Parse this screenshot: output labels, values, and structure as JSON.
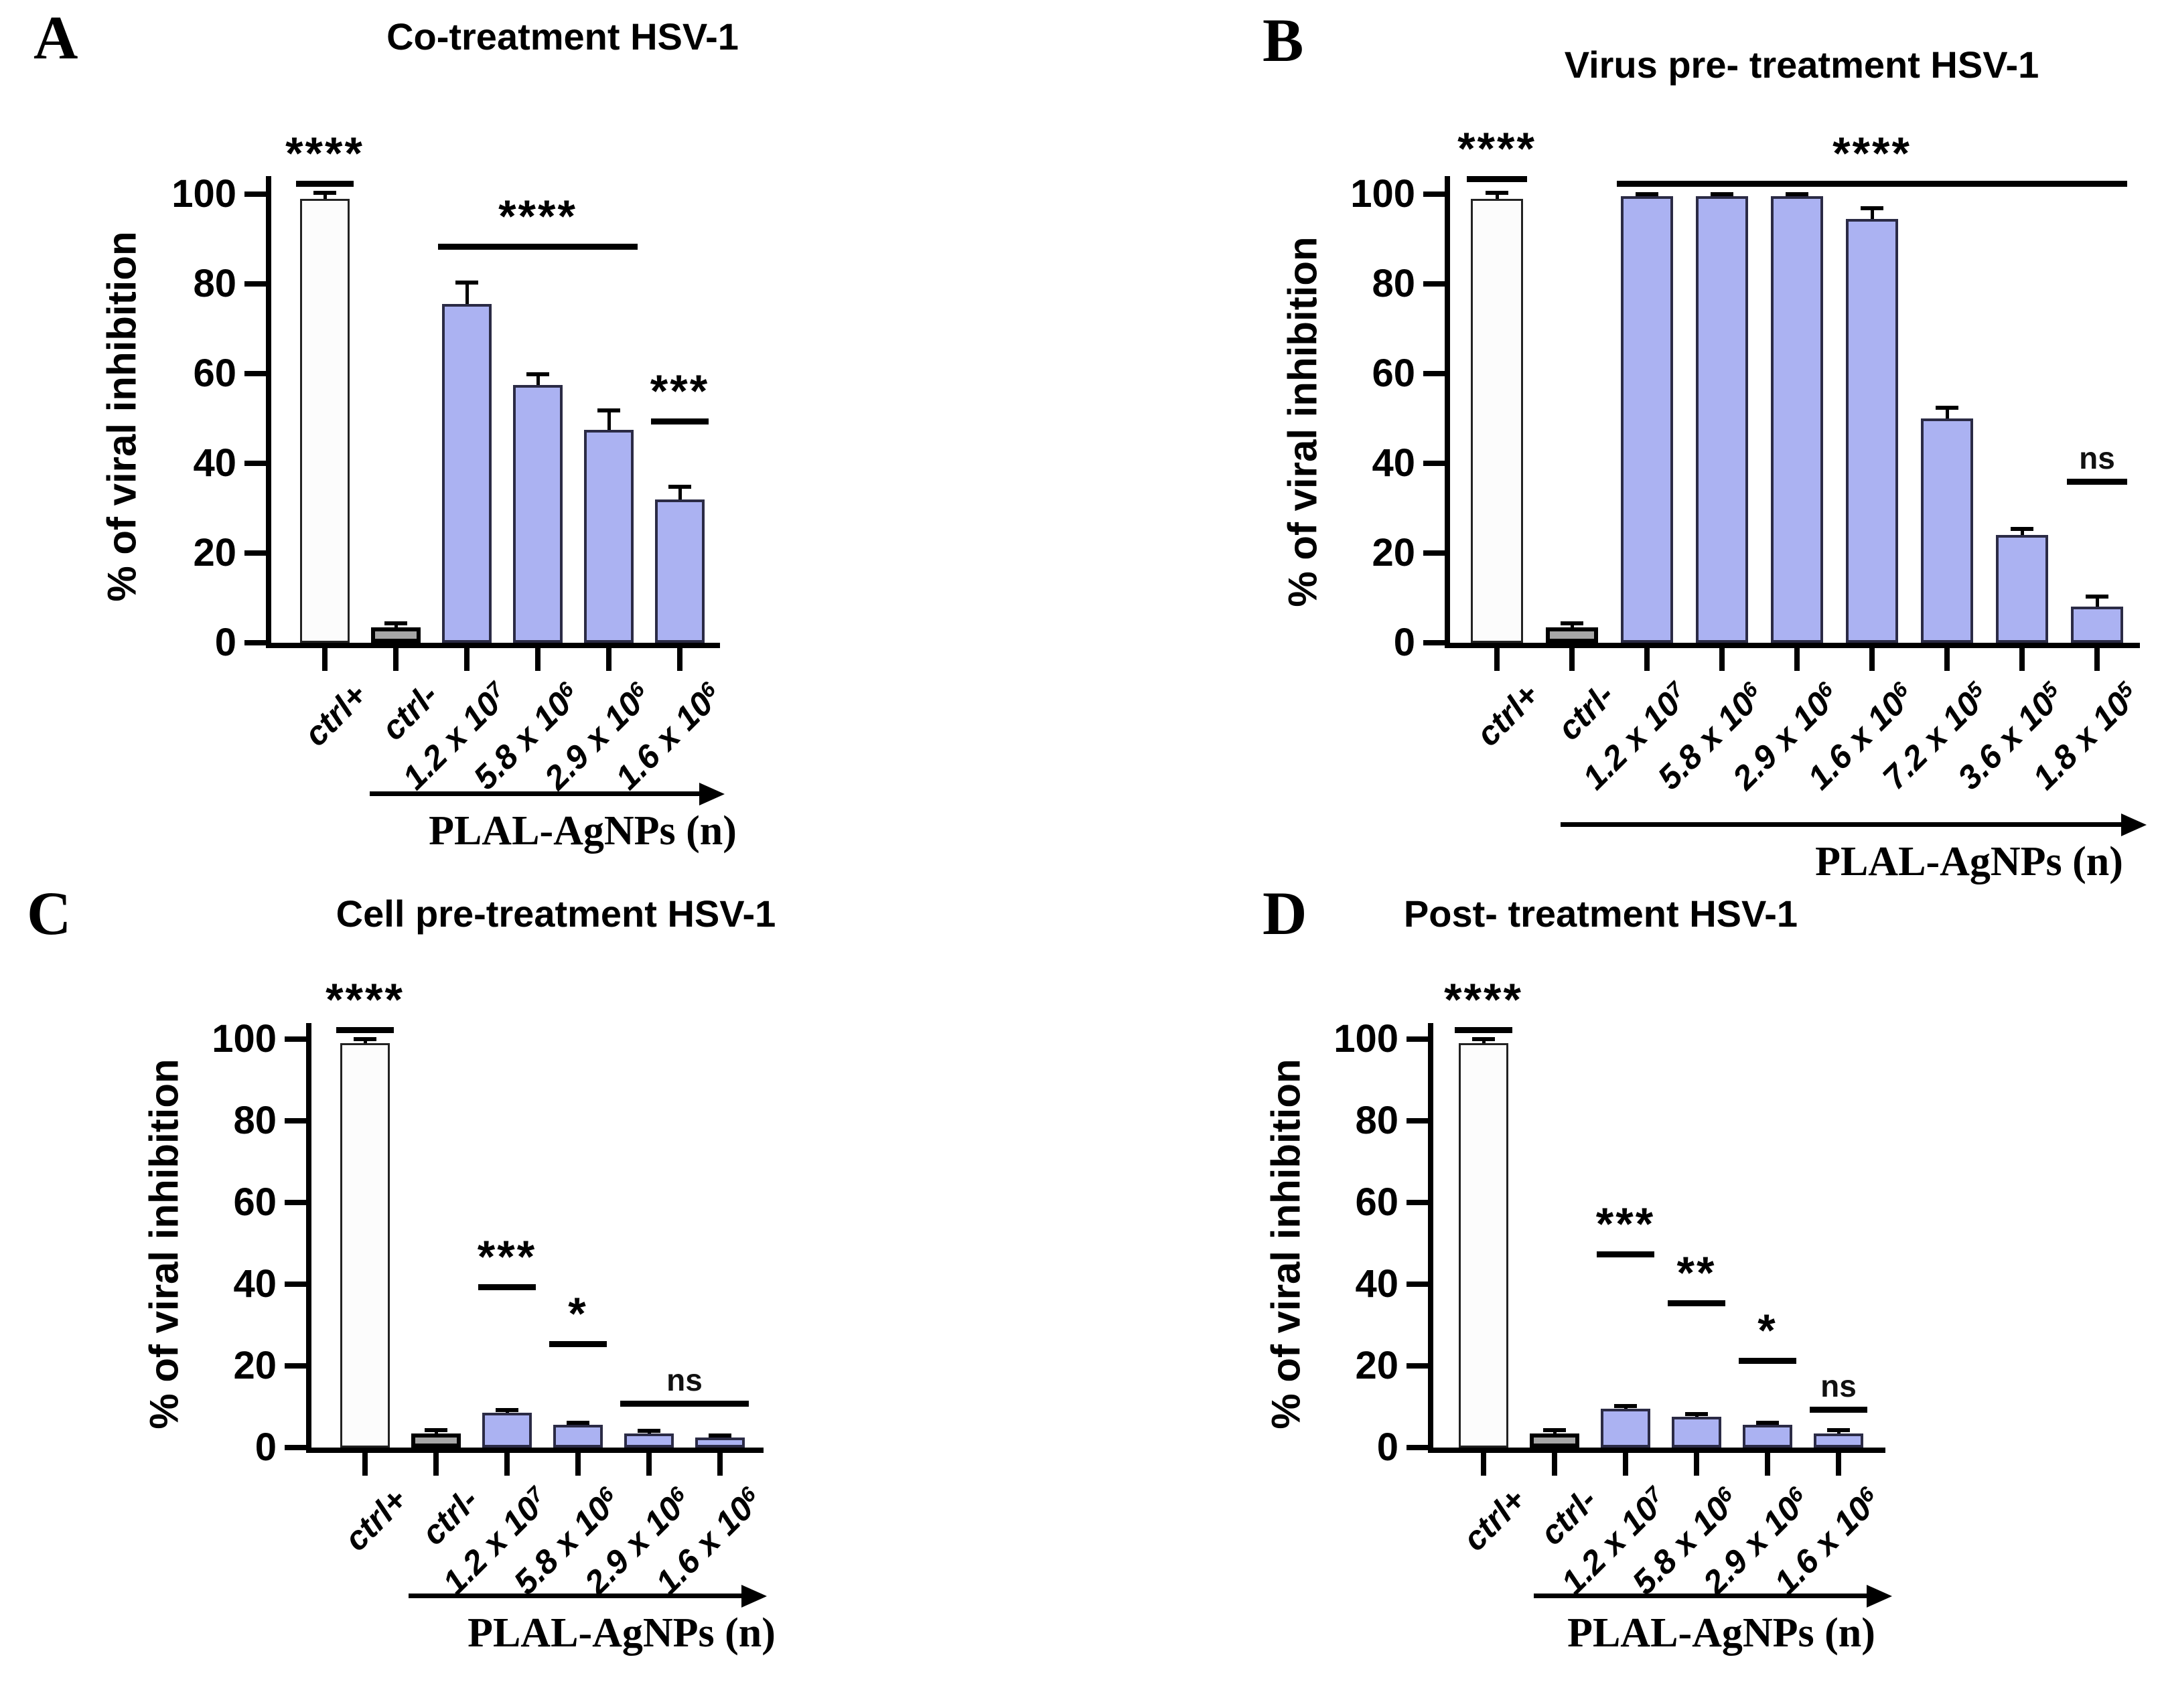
{
  "shared": {
    "ylabel": "% of viral inhibition",
    "xlabel": "PLAL-AgNPs (n)",
    "colors": {
      "bar_blue_fill": "#abb2f2",
      "bar_blue_border": "#2b2b45",
      "bar_white_fill": "#fcfcfc",
      "bar_gray_fill": "#a6a6a6",
      "axis": "#000000",
      "background": "#ffffff"
    }
  },
  "chart_data": [
    {
      "id": "A",
      "type": "bar",
      "letter": "A",
      "title": "Co-treatment HSV-1",
      "ylabel": "% of viral inhibition",
      "xlabel": "PLAL-AgNPs (n)",
      "ylim": [
        0,
        100
      ],
      "yticks": [
        0,
        20,
        40,
        60,
        80,
        100
      ],
      "categories": [
        {
          "label": "ctrl+",
          "exp": ""
        },
        {
          "label": "ctrl-",
          "exp": ""
        },
        {
          "label": "1.2 x 10",
          "exp": "7"
        },
        {
          "label": "5.8 x 10",
          "exp": "6"
        },
        {
          "label": "2.9 x 10",
          "exp": "6"
        },
        {
          "label": "1.6 x 10",
          "exp": "6"
        }
      ],
      "values": [
        99,
        3.5,
        75.5,
        57.5,
        47.5,
        32
      ],
      "errors": [
        1.5,
        1,
        5,
        2.5,
        4.5,
        3
      ],
      "fills": [
        "white",
        "gray",
        "blue",
        "blue",
        "blue",
        "blue"
      ],
      "significance": [
        {
          "text": "****",
          "from": 0,
          "to": 0,
          "y": 103
        },
        {
          "text": "****",
          "from": 2,
          "to": 4,
          "y": 89
        },
        {
          "text": "***",
          "from": 5,
          "to": 5,
          "y": 50
        }
      ]
    },
    {
      "id": "B",
      "type": "bar",
      "letter": "B",
      "title": "Virus pre- treatment HSV-1",
      "ylabel": "% of viral inhibition",
      "xlabel": "PLAL-AgNPs (n)",
      "ylim": [
        0,
        100
      ],
      "yticks": [
        0,
        20,
        40,
        60,
        80,
        100
      ],
      "categories": [
        {
          "label": "ctrl+",
          "exp": ""
        },
        {
          "label": "ctrl-",
          "exp": ""
        },
        {
          "label": "1.2 x 10",
          "exp": "7"
        },
        {
          "label": "5.8 x 10",
          "exp": "6"
        },
        {
          "label": "2.9 x 10",
          "exp": "6"
        },
        {
          "label": "1.6 x 10",
          "exp": "6"
        },
        {
          "label": "7.2 x 10",
          "exp": "5"
        },
        {
          "label": "3.6 x 10",
          "exp": "5"
        },
        {
          "label": "1.8 x 10",
          "exp": "5"
        }
      ],
      "values": [
        99,
        3.5,
        99.5,
        99.5,
        99.5,
        94.5,
        50,
        24,
        8
      ],
      "errors": [
        1.5,
        1,
        0.7,
        0.7,
        0.7,
        2.5,
        2.5,
        1.5,
        2.5
      ],
      "fills": [
        "white",
        "gray",
        "blue",
        "blue",
        "blue",
        "blue",
        "blue",
        "blue",
        "blue"
      ],
      "significance": [
        {
          "text": "****",
          "from": 0,
          "to": 0,
          "y": 104
        },
        {
          "text": "****",
          "from": 2,
          "to": 8,
          "y": 103
        },
        {
          "text": "ns",
          "from": 8,
          "to": 8,
          "y": 36.5
        }
      ]
    },
    {
      "id": "C",
      "type": "bar",
      "letter": "C",
      "title": "Cell pre-treatment HSV-1",
      "ylabel": "% of viral inhibition",
      "xlabel": "PLAL-AgNPs (n)",
      "ylim": [
        0,
        100
      ],
      "yticks": [
        0,
        20,
        40,
        60,
        80,
        100
      ],
      "categories": [
        {
          "label": "ctrl+",
          "exp": ""
        },
        {
          "label": "ctrl-",
          "exp": ""
        },
        {
          "label": "1.2 x 10",
          "exp": "7"
        },
        {
          "label": "5.8 x 10",
          "exp": "6"
        },
        {
          "label": "2.9 x 10",
          "exp": "6"
        },
        {
          "label": "1.6 x 10",
          "exp": "6"
        }
      ],
      "values": [
        99,
        3.5,
        8.5,
        5.5,
        3.5,
        2.5
      ],
      "errors": [
        1.2,
        1,
        0.8,
        0.8,
        0.7,
        0.6
      ],
      "fills": [
        "white",
        "gray",
        "blue",
        "blue",
        "blue",
        "blue"
      ],
      "significance": [
        {
          "text": "****",
          "from": 0,
          "to": 0,
          "y": 103
        },
        {
          "text": "***",
          "from": 2,
          "to": 2,
          "y": 40
        },
        {
          "text": "*",
          "from": 3,
          "to": 3,
          "y": 26
        },
        {
          "text": "ns",
          "from": 4,
          "to": 5,
          "y": 11.5
        }
      ]
    },
    {
      "id": "D",
      "type": "bar",
      "letter": "D",
      "title": "Post- treatment HSV-1",
      "ylabel": "% of viral inhibition",
      "xlabel": "PLAL-AgNPs (n)",
      "ylim": [
        0,
        100
      ],
      "yticks": [
        0,
        20,
        40,
        60,
        80,
        100
      ],
      "categories": [
        {
          "label": "ctrl+",
          "exp": ""
        },
        {
          "label": "ctrl-",
          "exp": ""
        },
        {
          "label": "1.2 x 10",
          "exp": "7"
        },
        {
          "label": "5.8 x 10",
          "exp": "6"
        },
        {
          "label": "2.9 x 10",
          "exp": "6"
        },
        {
          "label": "1.6 x 10",
          "exp": "6"
        }
      ],
      "values": [
        99,
        3.5,
        9.5,
        7.5,
        5.5,
        3.5
      ],
      "errors": [
        1.2,
        1,
        0.8,
        0.8,
        0.8,
        0.9
      ],
      "fills": [
        "white",
        "gray",
        "blue",
        "blue",
        "blue",
        "blue"
      ],
      "significance": [
        {
          "text": "****",
          "from": 0,
          "to": 0,
          "y": 103
        },
        {
          "text": "***",
          "from": 2,
          "to": 2,
          "y": 48
        },
        {
          "text": "**",
          "from": 3,
          "to": 3,
          "y": 36
        },
        {
          "text": "*",
          "from": 4,
          "to": 4,
          "y": 22
        },
        {
          "text": "ns",
          "from": 5,
          "to": 5,
          "y": 10
        }
      ]
    }
  ]
}
